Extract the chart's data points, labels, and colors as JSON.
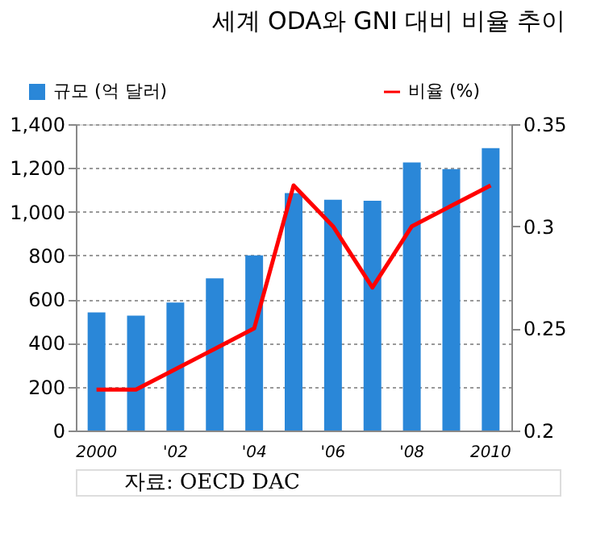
{
  "chart_data": {
    "type": "bar",
    "title": "세계 ODA와 GNI 대비 비율 추이",
    "categories": [
      "2000",
      null,
      "'02",
      null,
      "'04",
      null,
      "'06",
      null,
      "'08",
      null,
      "2010"
    ],
    "series": [
      {
        "name": "규모 (억 달러)",
        "color": "#2a87d8",
        "values": [
          540,
          525,
          585,
          695,
          800,
          1085,
          1055,
          1050,
          1225,
          1195,
          1290
        ]
      },
      {
        "name": "비율 (%)",
        "type": "line",
        "axis": "y2",
        "color": "#ff0000",
        "values": [
          0.22,
          0.22,
          0.23,
          0.24,
          0.25,
          0.32,
          0.3,
          0.27,
          0.3,
          0.31,
          0.32
        ]
      }
    ],
    "ylim": [
      0,
      1400
    ],
    "yticks": [
      {
        "value": 0,
        "label": "0"
      },
      {
        "value": 200,
        "label": "200"
      },
      {
        "value": 400,
        "label": "400"
      },
      {
        "value": 600,
        "label": "600"
      },
      {
        "value": 800,
        "label": "800"
      },
      {
        "value": 1000,
        "label": "1,000"
      },
      {
        "value": 1200,
        "label": "1,200"
      },
      {
        "value": 1400,
        "label": "1,400"
      }
    ],
    "y2lim": [
      0.2,
      0.35
    ],
    "y2ticks": [
      {
        "value": 0.2,
        "label": "0.2"
      },
      0.25,
      {
        "value": 0.3,
        "label": "0.3"
      },
      0.35
    ],
    "grid": "y",
    "legend": "top",
    "annotations": [
      "자료: OECD DAC"
    ]
  }
}
